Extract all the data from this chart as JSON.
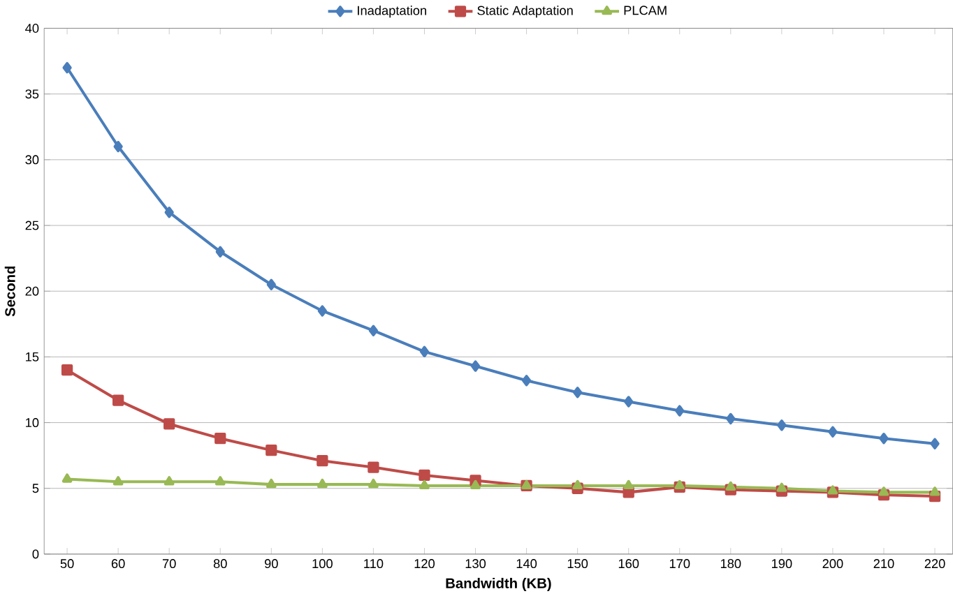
{
  "chart_data": {
    "type": "line",
    "xlabel": "Bandwidth (KB)",
    "ylabel": "Second",
    "categories": [
      "50",
      "60",
      "70",
      "80",
      "90",
      "100",
      "110",
      "120",
      "130",
      "140",
      "150",
      "160",
      "170",
      "180",
      "190",
      "200",
      "210",
      "220"
    ],
    "ylim": [
      0,
      40
    ],
    "yticks": [
      0,
      5,
      10,
      15,
      20,
      25,
      30,
      35,
      40
    ],
    "grid": "y",
    "legend": "top",
    "series": [
      {
        "name": "Inadaptation",
        "color": "#4a7ebb",
        "marker": "diamond",
        "values": [
          37,
          31,
          26,
          23,
          20.5,
          18.5,
          17,
          15.4,
          14.3,
          13.2,
          12.3,
          11.6,
          10.9,
          10.3,
          9.8,
          9.3,
          8.8,
          8.4
        ]
      },
      {
        "name": "Static Adaptation",
        "color": "#be4b48",
        "marker": "square",
        "values": [
          14,
          11.7,
          9.9,
          8.8,
          7.9,
          7.1,
          6.6,
          6.0,
          5.6,
          5.2,
          5.0,
          4.7,
          5.1,
          4.9,
          4.8,
          4.7,
          4.5,
          4.4
        ]
      },
      {
        "name": "PLCAM",
        "color": "#98b954",
        "marker": "triangle",
        "values": [
          5.7,
          5.5,
          5.5,
          5.5,
          5.3,
          5.3,
          5.3,
          5.2,
          5.2,
          5.2,
          5.2,
          5.2,
          5.2,
          5.1,
          5.0,
          4.8,
          4.7,
          4.7
        ]
      }
    ]
  }
}
